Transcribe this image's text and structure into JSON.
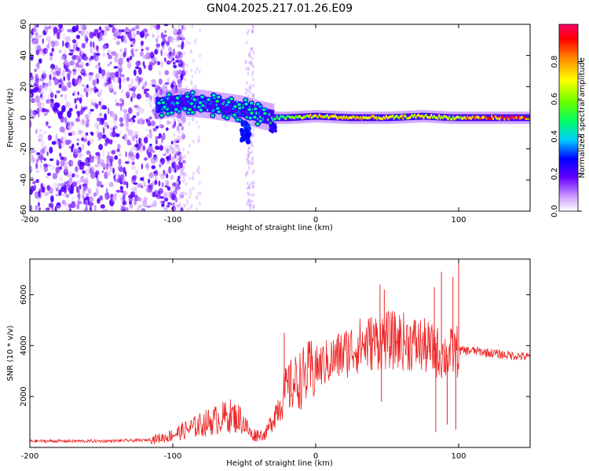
{
  "title": "GN04.2025.217.01.26.E09",
  "chart_data": [
    {
      "type": "heatmap",
      "xlabel": "Height of straight line (km)",
      "ylabel": "Frequency (Hz)",
      "xlim": [
        -200,
        150
      ],
      "ylim": [
        -60,
        60
      ],
      "x_ticks": [
        -200,
        -100,
        0,
        100
      ],
      "y_ticks": [
        -60,
        -40,
        -20,
        0,
        20,
        40,
        60
      ],
      "grid": false,
      "colorbar": {
        "label": "Normalized spectral amplitude",
        "range": [
          0,
          1
        ],
        "ticks": [
          "0.0",
          "0.2",
          "0.4",
          "0.6",
          "0.8"
        ]
      },
      "ridge": [
        {
          "x": -110,
          "freq": 8,
          "amp": 0.35
        },
        {
          "x": -95,
          "freq": 10,
          "amp": 0.4
        },
        {
          "x": -80,
          "freq": 9,
          "amp": 0.42
        },
        {
          "x": -65,
          "freq": 7,
          "amp": 0.38
        },
        {
          "x": -50,
          "freq": 5,
          "amp": 0.35
        },
        {
          "x": -40,
          "freq": 2,
          "amp": 0.45
        },
        {
          "x": -30,
          "freq": 0,
          "amp": 0.5
        },
        {
          "x": -20,
          "freq": 0,
          "amp": 0.6
        },
        {
          "x": 0,
          "freq": 1,
          "amp": 0.75
        },
        {
          "x": 25,
          "freq": 0,
          "amp": 0.8
        },
        {
          "x": 50,
          "freq": 0,
          "amp": 0.7
        },
        {
          "x": 75,
          "freq": 1,
          "amp": 0.75
        },
        {
          "x": 95,
          "freq": 0,
          "amp": 0.65
        },
        {
          "x": 120,
          "freq": 0,
          "amp": 0.9
        },
        {
          "x": 150,
          "freq": 0,
          "amp": 0.9
        }
      ],
      "noise_region": {
        "x_from": -200,
        "x_to": -100
      }
    },
    {
      "type": "line",
      "xlabel": "Height of straight line (km)",
      "ylabel": "SNR (10 * v/v)",
      "xlim": [
        -200,
        150
      ],
      "ylim": [
        0,
        7400
      ],
      "x_ticks": [
        -200,
        -100,
        0,
        100
      ],
      "y_ticks": [
        2000,
        4000,
        6000
      ],
      "grid": false,
      "series": [
        {
          "color": "#ee2222",
          "envelope": [
            {
              "x": -200,
              "y": 250
            },
            {
              "x": -150,
              "y": 250
            },
            {
              "x": -120,
              "y": 280
            },
            {
              "x": -105,
              "y": 400
            },
            {
              "x": -90,
              "y": 700
            },
            {
              "x": -75,
              "y": 1000
            },
            {
              "x": -60,
              "y": 1250
            },
            {
              "x": -52,
              "y": 1100
            },
            {
              "x": -45,
              "y": 500
            },
            {
              "x": -35,
              "y": 500
            },
            {
              "x": -28,
              "y": 1400
            },
            {
              "x": -20,
              "y": 2300
            },
            {
              "x": -10,
              "y": 2700
            },
            {
              "x": 0,
              "y": 3100
            },
            {
              "x": 10,
              "y": 3400
            },
            {
              "x": 20,
              "y": 3700
            },
            {
              "x": 30,
              "y": 4000
            },
            {
              "x": 45,
              "y": 4200
            },
            {
              "x": 60,
              "y": 4200
            },
            {
              "x": 75,
              "y": 4000
            },
            {
              "x": 90,
              "y": 3600
            },
            {
              "x": 100,
              "y": 3800
            },
            {
              "x": 110,
              "y": 3800
            },
            {
              "x": 130,
              "y": 3650
            },
            {
              "x": 150,
              "y": 3550
            }
          ],
          "spikes": [
            {
              "x": -22,
              "y": 4500
            },
            {
              "x": 45,
              "y": 6400
            },
            {
              "x": 48,
              "y": 6200
            },
            {
              "x": 83,
              "y": 6300
            },
            {
              "x": 88,
              "y": 6900
            },
            {
              "x": 96,
              "y": 6700
            },
            {
              "x": 100,
              "y": 7400
            },
            {
              "x": 84,
              "y": 600
            },
            {
              "x": 92,
              "y": 900
            },
            {
              "x": 98,
              "y": 700
            },
            {
              "x": 46,
              "y": 1800
            }
          ]
        }
      ]
    }
  ]
}
